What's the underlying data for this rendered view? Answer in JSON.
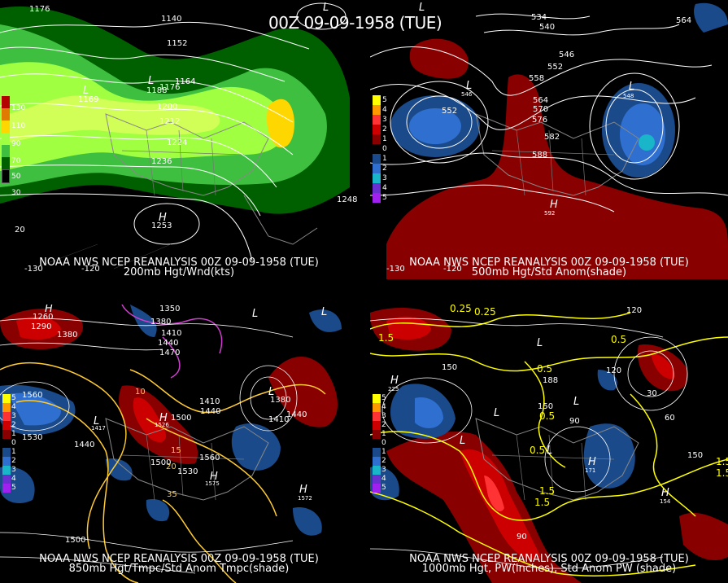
{
  "main_title": "00Z 09-09-1958 (TUE)",
  "panels": {
    "p200": {
      "line1": "NOAA NWS NCEP REANALYSIS 00Z 09-09-1958 (TUE)",
      "line2": "200mb Hgt/Wnd(kts)",
      "legend": [
        "130",
        "110",
        "90",
        "70",
        "50",
        "30"
      ],
      "legend_colors": [
        "#b30000",
        "#e07a00",
        "#ffd700",
        "#a0ff40",
        "#3fbf3f",
        "#006000"
      ],
      "labels": [
        "1176",
        "1140",
        "1152",
        "1164",
        "1188",
        "1176",
        "1200",
        "1212",
        "1224",
        "1236",
        "1248",
        "1253",
        "1169",
        "-130",
        "-120",
        "20"
      ],
      "highs_lows": [
        "L",
        "L",
        "L",
        "H"
      ]
    },
    "p500": {
      "line1": "NOAA NWS NCEP REANALYSIS 00Z 09-09-1958 (TUE)",
      "line2": "500mb Hgt/Std Anom(shade)",
      "legend": [
        "5",
        "4",
        "3",
        "2",
        "1",
        "0",
        "1",
        "2",
        "3",
        "4",
        "5"
      ],
      "legend_colors": [
        "#ffff00",
        "#ff9900",
        "#ff3333",
        "#cc0000",
        "#880000",
        "#000000",
        "#1a4a8a",
        "#2f6fd0",
        "#19b5c8",
        "#6a2fd0",
        "#a020f0"
      ],
      "labels": [
        "534",
        "540",
        "546",
        "552",
        "552",
        "558",
        "564",
        "570",
        "576",
        "582",
        "588",
        "592",
        "546",
        "564",
        "548",
        "-120",
        "-130"
      ],
      "highs_lows": [
        "L",
        "L",
        "L",
        "H"
      ]
    },
    "p850": {
      "line1": "NOAA NWS NCEP REANALYSIS 00Z 09-09-1958 (TUE)",
      "line2": "850mb Hgt/Tmpc/Std Anom Tmpc(shade)",
      "legend": [
        "5",
        "4",
        "3",
        "2",
        "1",
        "0",
        "1",
        "2",
        "3",
        "4",
        "5"
      ],
      "labels": [
        "1350",
        "1380",
        "1410",
        "1440",
        "1470",
        "1260",
        "1290",
        "1380",
        "1560",
        "1530",
        "1440",
        "1410",
        "1440",
        "1500",
        "1526",
        "1500",
        "1530",
        "1560",
        "1575",
        "1572",
        "1500",
        "1417",
        "1380",
        "1410",
        "1440",
        "10",
        "15",
        "20",
        "35"
      ],
      "highs_lows": [
        "H",
        "L",
        "L",
        "H",
        "H",
        "H",
        "L",
        "L"
      ]
    },
    "p1000": {
      "line1": "NOAA NWS NCEP REANALYSIS 00Z 09-09-1958 (TUE)",
      "line2": "1000mb Hgt, PW(inches), Std Anom PW (shade)",
      "legend": [
        "5",
        "4",
        "3",
        "2",
        "1",
        "0",
        "1",
        "2",
        "3",
        "4",
        "5"
      ],
      "labels": [
        "0.25",
        "0.25",
        "1.5",
        "0.5",
        "0.5",
        "0.5",
        "0.5",
        "1.5",
        "1.5",
        "1.5",
        "120",
        "120",
        "150",
        "150",
        "90",
        "90",
        "60",
        "30",
        "150",
        "225",
        "188",
        "171",
        "154",
        "1.5"
      ],
      "highs_lows": [
        "H",
        "L",
        "L",
        "L",
        "L",
        "H",
        "H",
        "L"
      ]
    }
  }
}
